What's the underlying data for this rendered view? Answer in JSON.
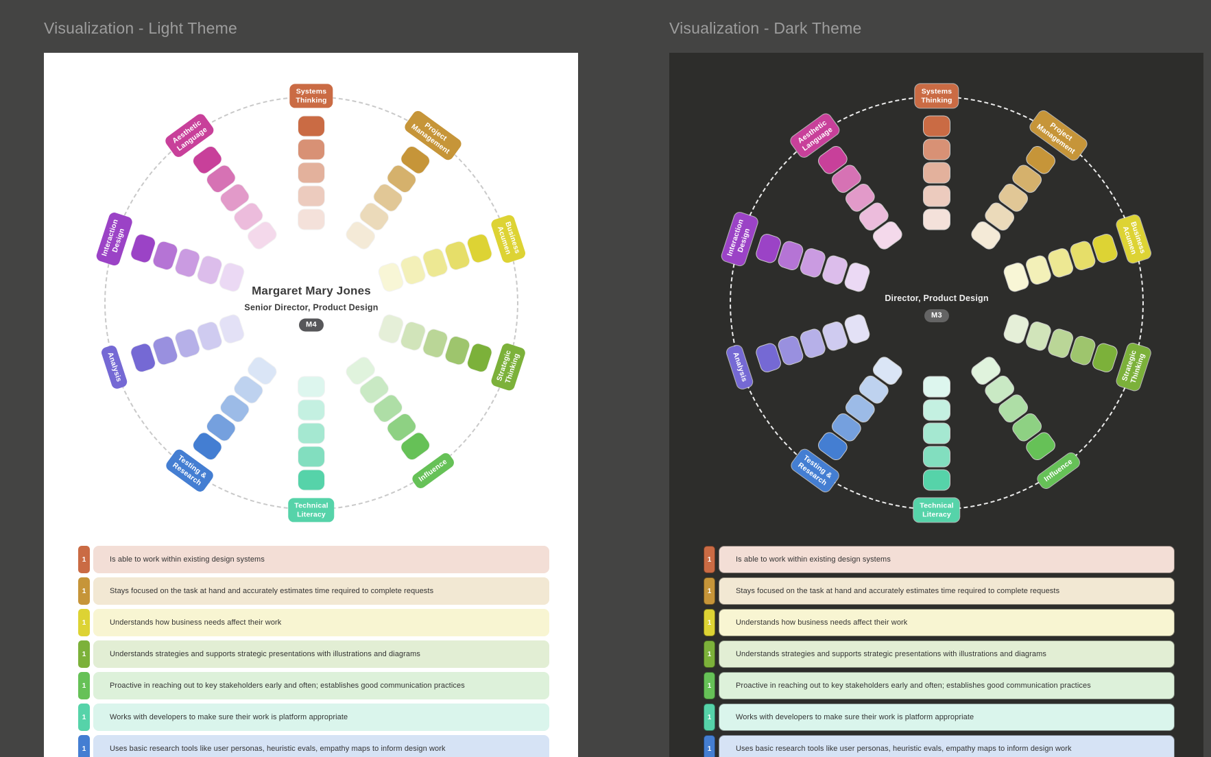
{
  "page": {
    "background_color": "#444443",
    "light_panel_color": "#ffffff",
    "dark_panel_color": "#2d2d2b"
  },
  "panels": [
    {
      "title": "Visualization - Light Theme",
      "theme": "light",
      "center": {
        "name": "Margaret Mary Jones",
        "role": "Senior Director, Product Design",
        "badge": "M4"
      }
    },
    {
      "title": "Visualization - Dark Theme",
      "theme": "dark",
      "center": {
        "name": "",
        "role": "Director, Product Design",
        "badge": "M3"
      }
    }
  ],
  "chart_data": {
    "type": "radial",
    "title": "Design competency wheel",
    "categories": [
      "Systems Thinking",
      "Project Management",
      "Business Acumen",
      "Strategic Thinking",
      "Influence",
      "Technical Literacy",
      "Testing & Research",
      "Analysis",
      "Interaction Design",
      "Aesthetic Language"
    ],
    "levels_per_category": 5,
    "blocks_shading": "outer block full color fading to pale tint toward center",
    "series": [
      {
        "name": "Light Theme",
        "person": "Margaret Mary Jones",
        "role": "Senior Director, Product Design",
        "level_badge": "M4"
      },
      {
        "name": "Dark Theme",
        "person": "",
        "role": "Director, Product Design",
        "level_badge": "M3"
      }
    ]
  },
  "wheel": {
    "spokes": [
      {
        "label": "Systems\nThinking",
        "color": "#ca6b44",
        "angle": 0
      },
      {
        "label": "Project\nManagement",
        "color": "#c69539",
        "angle": 36
      },
      {
        "label": "Business\nAcumen",
        "color": "#ddd334",
        "angle": 72
      },
      {
        "label": "Strategic\nThinking",
        "color": "#7cb13a",
        "angle": 108
      },
      {
        "label": "Influence",
        "color": "#66c157",
        "angle": 144
      },
      {
        "label": "Technical\nLiteracy",
        "color": "#56d3a9",
        "angle": 180
      },
      {
        "label": "Testing &\nResearch",
        "color": "#447ed2",
        "angle": 216
      },
      {
        "label": "Analysis",
        "color": "#7569d4",
        "angle": 252
      },
      {
        "label": "Interaction\nDesign",
        "color": "#9b43c6",
        "angle": 288
      },
      {
        "label": "Aesthetic\nLanguage",
        "color": "#c8409a",
        "angle": 324
      }
    ],
    "blocks_per_spoke": 5
  },
  "skills": [
    {
      "level": "1",
      "color": "#ca6b44",
      "text": "Is able to work within existing design systems"
    },
    {
      "level": "1",
      "color": "#c69539",
      "text": "Stays focused on the task at hand and accurately estimates time required to complete requests"
    },
    {
      "level": "1",
      "color": "#ddd334",
      "text": "Understands how business needs affect their work"
    },
    {
      "level": "1",
      "color": "#7cb13a",
      "text": "Understands strategies and supports strategic presentations with illustrations and diagrams"
    },
    {
      "level": "1",
      "color": "#66c157",
      "text": "Proactive in reaching out to key stakeholders early and often; establishes good communication practices"
    },
    {
      "level": "1",
      "color": "#56d3a9",
      "text": "Works with developers to make sure their work is platform appropriate"
    },
    {
      "level": "1",
      "color": "#447ed2",
      "text": "Uses basic research tools like user personas, heuristic evals, empathy maps to inform design work"
    }
  ]
}
